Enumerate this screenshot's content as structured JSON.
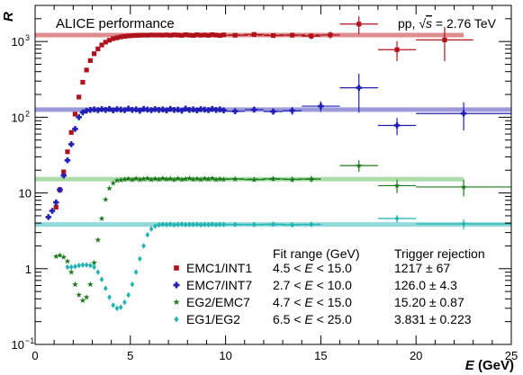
{
  "chart_data": {
    "type": "scatter",
    "title": "",
    "header_left": "ALICE performance",
    "header_right": {
      "prefix": "pp, ",
      "sqrt_symbol": "√",
      "sqrt_arg": "s",
      "suffix": " = 2.76 TeV"
    },
    "ylabel": "R",
    "xlabel_var": "E",
    "xlabel_unit": " (GeV)",
    "x_range": [
      0,
      25
    ],
    "y_range": [
      0.1,
      3000
    ],
    "y_scale": "log",
    "x_ticks": [
      0,
      5,
      10,
      15,
      20,
      25
    ],
    "x_tick_labels": [
      "0",
      "5",
      "10",
      "15",
      "20",
      "25"
    ],
    "y_ticks": [
      {
        "v": 0.1,
        "base": "10",
        "exp": "−1"
      },
      {
        "v": 1,
        "base": "1",
        "exp": ""
      },
      {
        "v": 10,
        "base": "10",
        "exp": ""
      },
      {
        "v": 100,
        "base": "10",
        "exp": "2"
      },
      {
        "v": 1000,
        "base": "10",
        "exp": "3"
      }
    ],
    "legend": {
      "placement": "bottom-right",
      "header_fit": "Fit range (GeV)",
      "header_rej": "Trigger rejection",
      "entries": [
        {
          "name": "EMC1/INT1",
          "lo": "4.5",
          "var": "E",
          "hi": "15.0",
          "rej": "1217",
          "err": "67"
        },
        {
          "name": "EMC7/INT7",
          "lo": "2.7",
          "var": "E",
          "hi": "10.0",
          "rej": "126.0",
          "err": "4.3"
        },
        {
          "name": "EG2/EMC7",
          "lo": "4.7",
          "var": "E",
          "hi": "15.0",
          "rej": "15.20",
          "err": "0.87"
        },
        {
          "name": "EG1/EG2",
          "lo": "6.5",
          "var": "E",
          "hi": "25.0",
          "rej": "3.831",
          "err": "0.223"
        }
      ]
    },
    "colors": {
      "EMC1/INT1": "#b0121b",
      "EMC7/INT7": "#1f1fb4",
      "EG2/EMC7": "#1e7a1e",
      "EG1/EG2": "#22b3b3"
    },
    "band_colors": {
      "EMC1/INT1": "#d87878",
      "EMC7/INT7": "#8a8ad6",
      "EG2/EMC7": "#9ed89e",
      "EG1/EG2": "#7fd4d4"
    },
    "series": [
      {
        "name": "EMC1/INT1",
        "marker": "square",
        "plateau": 1217,
        "plateau_range": [
          0,
          22.5
        ],
        "fit_range": [
          4.5,
          15.0
        ],
        "points": [
          [
            1.1,
            6.5
          ],
          [
            1.3,
            11
          ],
          [
            1.5,
            19
          ],
          [
            1.7,
            35
          ],
          [
            1.9,
            63
          ],
          [
            2.1,
            110
          ],
          [
            2.3,
            185
          ],
          [
            2.5,
            290
          ],
          [
            2.7,
            420
          ],
          [
            2.9,
            560
          ],
          [
            3.1,
            690
          ],
          [
            3.3,
            800
          ],
          [
            3.5,
            900
          ],
          [
            3.7,
            980
          ],
          [
            3.9,
            1040
          ],
          [
            4.1,
            1090
          ],
          [
            4.3,
            1120
          ],
          [
            4.5,
            1150
          ],
          [
            4.7,
            1170
          ],
          [
            4.9,
            1185
          ],
          [
            5.1,
            1195
          ],
          [
            5.3,
            1205
          ],
          [
            5.5,
            1210
          ],
          [
            5.7,
            1215
          ],
          [
            5.9,
            1212
          ],
          [
            6.1,
            1220
          ],
          [
            6.3,
            1216
          ],
          [
            6.5,
            1218
          ],
          [
            6.7,
            1214
          ],
          [
            6.9,
            1222
          ],
          [
            7.1,
            1210
          ],
          [
            7.3,
            1225
          ],
          [
            7.5,
            1218
          ],
          [
            7.7,
            1206
          ],
          [
            7.9,
            1230
          ],
          [
            8.1,
            1215
          ],
          [
            8.3,
            1205
          ],
          [
            8.5,
            1228
          ],
          [
            8.7,
            1212
          ],
          [
            8.9,
            1220
          ],
          [
            9.1,
            1208
          ],
          [
            9.3,
            1232
          ],
          [
            9.5,
            1215
          ],
          [
            9.7,
            1200
          ],
          [
            9.9,
            1225
          ],
          {
            "x": 10.5,
            "y": 1210,
            "xe": 0.5,
            "ye": 60
          },
          {
            "x": 11.5,
            "y": 1240,
            "xe": 0.5,
            "ye": 70
          },
          {
            "x": 12.5,
            "y": 1200,
            "xe": 0.5,
            "ye": 80
          },
          {
            "x": 13.5,
            "y": 1215,
            "xe": 0.5,
            "ye": 90
          },
          {
            "x": 14.5,
            "y": 1180,
            "xe": 0.5,
            "ye": 110
          },
          {
            "x": 15.5,
            "y": 1220,
            "xe": 0.5,
            "ye": 130
          },
          {
            "x": 17,
            "y": 1700,
            "xe": 1,
            "ye": 450
          },
          {
            "x": 19,
            "y": 780,
            "xe": 1,
            "ye": 230
          },
          {
            "x": 21.5,
            "y": 1050,
            "xe": 1.5,
            "ye": 500
          }
        ]
      },
      {
        "name": "EMC7/INT7",
        "marker": "cross",
        "plateau": 126,
        "plateau_range": [
          0,
          25
        ],
        "fit_range": [
          2.7,
          10.0
        ],
        "points": [
          [
            0.7,
            4.8
          ],
          [
            0.9,
            5.8
          ],
          [
            1.1,
            7.5
          ],
          [
            1.3,
            11
          ],
          [
            1.5,
            17
          ],
          [
            1.7,
            27
          ],
          [
            1.9,
            44
          ],
          [
            2.1,
            70
          ],
          [
            2.3,
            100
          ],
          [
            2.5,
            116
          ],
          [
            2.7,
            122
          ],
          [
            2.9,
            125
          ],
          [
            3.1,
            127
          ],
          [
            3.3,
            124
          ],
          [
            3.5,
            128
          ],
          [
            3.7,
            125
          ],
          [
            3.9,
            129
          ],
          [
            4.1,
            123
          ],
          [
            4.3,
            128
          ],
          [
            4.5,
            126
          ],
          [
            4.7,
            124
          ],
          [
            4.9,
            130
          ],
          [
            5.1,
            125
          ],
          [
            5.3,
            127
          ],
          [
            5.5,
            122
          ],
          [
            5.7,
            129
          ],
          [
            5.9,
            126
          ],
          [
            6.1,
            124
          ],
          [
            6.3,
            128
          ],
          [
            6.5,
            125
          ],
          [
            6.7,
            127
          ],
          [
            6.9,
            123
          ],
          [
            7.1,
            129
          ],
          [
            7.3,
            125
          ],
          [
            7.5,
            126
          ],
          [
            7.7,
            122
          ],
          [
            7.9,
            130
          ],
          [
            8.1,
            125
          ],
          [
            8.3,
            127
          ],
          [
            8.5,
            123
          ],
          [
            8.7,
            128
          ],
          [
            8.9,
            126
          ],
          [
            9.1,
            124
          ],
          [
            9.3,
            129
          ],
          [
            9.5,
            125
          ],
          [
            9.7,
            127
          ],
          [
            9.9,
            123
          ],
          {
            "x": 10.5,
            "y": 120,
            "xe": 0.5,
            "ye": 9
          },
          {
            "x": 11.5,
            "y": 126,
            "xe": 0.5,
            "ye": 10
          },
          {
            "x": 12.5,
            "y": 119,
            "xe": 0.5,
            "ye": 11
          },
          {
            "x": 13.5,
            "y": 122,
            "xe": 0.5,
            "ye": 14
          },
          {
            "x": 15,
            "y": 140,
            "xe": 1,
            "ye": 22
          },
          {
            "x": 17,
            "y": 245,
            "xe": 1,
            "ye": 130
          },
          {
            "x": 19,
            "y": 78,
            "xe": 1,
            "ye": 20
          },
          {
            "x": 22.5,
            "y": 112,
            "xe": 2.5,
            "ye": 45
          }
        ]
      },
      {
        "name": "EG2/EMC7",
        "marker": "star",
        "plateau": 15.2,
        "plateau_range": [
          0,
          22.5
        ],
        "fit_range": [
          4.7,
          15.0
        ],
        "points": [
          [
            1.1,
            1.45
          ],
          [
            1.3,
            1.5
          ],
          [
            1.5,
            1.42
          ],
          [
            1.7,
            1.25
          ],
          [
            1.9,
            0.9
          ],
          [
            2.1,
            0.62
          ],
          [
            2.3,
            0.45
          ],
          [
            2.5,
            0.38
          ],
          [
            2.7,
            0.42
          ],
          [
            2.9,
            0.62
          ],
          [
            3.1,
            1.2
          ],
          [
            3.3,
            2.4
          ],
          [
            3.5,
            4.6
          ],
          [
            3.7,
            8.2
          ],
          [
            3.9,
            11.5
          ],
          [
            4.1,
            13.5
          ],
          [
            4.3,
            14.6
          ],
          [
            4.5,
            14.8
          ],
          [
            4.7,
            15.1
          ],
          [
            4.9,
            15.4
          ],
          [
            5.1,
            14.9
          ],
          [
            5.3,
            15.5
          ],
          [
            5.5,
            15.0
          ],
          [
            5.7,
            15.3
          ],
          [
            5.9,
            15.6
          ],
          [
            6.1,
            15.0
          ],
          [
            6.3,
            15.4
          ],
          [
            6.5,
            15.1
          ],
          [
            6.7,
            15.6
          ],
          [
            6.9,
            15.2
          ],
          [
            7.1,
            15.4
          ],
          [
            7.3,
            14.9
          ],
          [
            7.5,
            15.5
          ],
          [
            7.7,
            15.0
          ],
          [
            7.9,
            15.3
          ],
          [
            8.1,
            15.6
          ],
          [
            8.3,
            15.1
          ],
          [
            8.5,
            15.4
          ],
          [
            8.7,
            15.0
          ],
          [
            8.9,
            15.5
          ],
          [
            9.1,
            15.2
          ],
          [
            9.3,
            15.6
          ],
          [
            9.5,
            15.0
          ],
          [
            9.7,
            15.3
          ],
          [
            9.9,
            15.1
          ],
          {
            "x": 10.5,
            "y": 15.3,
            "xe": 0.5,
            "ye": 0.7
          },
          {
            "x": 11.5,
            "y": 15.0,
            "xe": 0.5,
            "ye": 0.9
          },
          {
            "x": 12.5,
            "y": 15.4,
            "xe": 0.5,
            "ye": 1.0
          },
          {
            "x": 13.5,
            "y": 15.1,
            "xe": 0.5,
            "ye": 1.2
          },
          {
            "x": 14.5,
            "y": 15.3,
            "xe": 0.5,
            "ye": 1.5
          },
          {
            "x": 17,
            "y": 23,
            "xe": 1,
            "ye": 4
          },
          {
            "x": 19,
            "y": 12.5,
            "xe": 1,
            "ye": 2.5
          },
          {
            "x": 22.5,
            "y": 12,
            "xe": 2.5,
            "ye": 3
          }
        ]
      },
      {
        "name": "EG1/EG2",
        "marker": "diamond",
        "plateau": 3.831,
        "plateau_range": [
          0,
          25
        ],
        "fit_range": [
          6.5,
          25.0
        ],
        "points": [
          [
            1.7,
            1.05
          ],
          [
            1.9,
            1.05
          ],
          [
            2.1,
            1.07
          ],
          [
            2.3,
            1.1
          ],
          [
            2.5,
            1.12
          ],
          [
            2.7,
            1.12
          ],
          [
            2.9,
            1.1
          ],
          [
            3.1,
            1.05
          ],
          [
            3.3,
            0.9
          ],
          [
            3.5,
            0.72
          ],
          [
            3.7,
            0.55
          ],
          [
            3.9,
            0.42
          ],
          [
            4.1,
            0.33
          ],
          [
            4.3,
            0.3
          ],
          [
            4.5,
            0.31
          ],
          [
            4.7,
            0.36
          ],
          [
            4.9,
            0.45
          ],
          [
            5.1,
            0.62
          ],
          [
            5.3,
            0.9
          ],
          [
            5.5,
            1.35
          ],
          [
            5.7,
            2.0
          ],
          [
            5.9,
            2.8
          ],
          [
            6.1,
            3.35
          ],
          [
            6.3,
            3.65
          ],
          [
            6.5,
            3.8
          ],
          [
            6.7,
            3.85
          ],
          [
            6.9,
            3.82
          ],
          [
            7.1,
            3.86
          ],
          [
            7.3,
            3.8
          ],
          [
            7.5,
            3.84
          ],
          [
            7.7,
            3.87
          ],
          [
            7.9,
            3.81
          ],
          [
            8.1,
            3.85
          ],
          [
            8.3,
            3.83
          ],
          [
            8.5,
            3.86
          ],
          [
            8.7,
            3.8
          ],
          [
            8.9,
            3.84
          ],
          [
            9.1,
            3.82
          ],
          [
            9.3,
            3.87
          ],
          [
            9.5,
            3.81
          ],
          [
            9.7,
            3.85
          ],
          [
            9.9,
            3.83
          ],
          {
            "x": 10.5,
            "y": 3.84,
            "xe": 0.5,
            "ye": 0.06
          },
          {
            "x": 11.5,
            "y": 3.82,
            "xe": 0.5,
            "ye": 0.07
          },
          {
            "x": 12.5,
            "y": 3.86,
            "xe": 0.5,
            "ye": 0.08
          },
          {
            "x": 13.5,
            "y": 3.8,
            "xe": 0.5,
            "ye": 0.1
          },
          {
            "x": 14.5,
            "y": 3.85,
            "xe": 0.5,
            "ye": 0.12
          },
          {
            "x": 19,
            "y": 4.6,
            "xe": 1,
            "ye": 0.5
          },
          {
            "x": 22.5,
            "y": 3.9,
            "xe": 2.5,
            "ye": 0.6
          }
        ]
      }
    ]
  }
}
